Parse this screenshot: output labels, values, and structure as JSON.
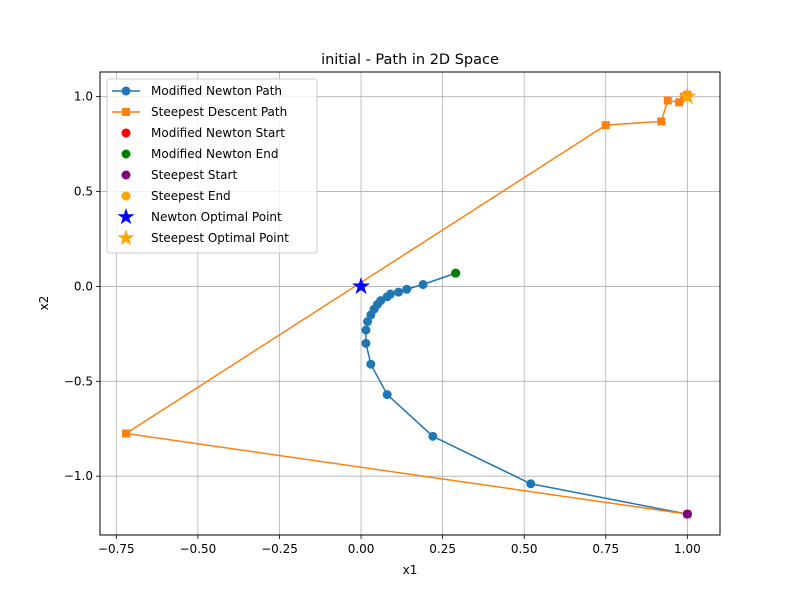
{
  "chart_data": {
    "type": "line",
    "title": "initial - Path in 2D Space",
    "xlabel": "x1",
    "ylabel": "x2",
    "xlim": [
      -0.8,
      1.1
    ],
    "ylim": [
      -1.31,
      1.13
    ],
    "xticks": [
      -0.75,
      -0.5,
      -0.25,
      0.0,
      0.25,
      0.5,
      0.75,
      1.0
    ],
    "xtick_labels": [
      "−0.75",
      "−0.50",
      "−0.25",
      "0.00",
      "0.25",
      "0.50",
      "0.75",
      "1.00"
    ],
    "yticks": [
      -1.0,
      -0.5,
      0.0,
      0.5,
      1.0
    ],
    "ytick_labels": [
      "−1.0",
      "−0.5",
      "0.0",
      "0.5",
      "1.0"
    ],
    "grid": true,
    "legend_position": "top-left",
    "series": [
      {
        "name": "Modified Newton Path",
        "kind": "line-marker",
        "marker": "circle",
        "color": "#1f77b4",
        "x": [
          1.0,
          0.52,
          0.22,
          0.08,
          0.03,
          0.015,
          0.015,
          0.02,
          0.03,
          0.04,
          0.05,
          0.06,
          0.08,
          0.09,
          0.115,
          0.14,
          0.19,
          0.29
        ],
        "y": [
          -1.2,
          -1.04,
          -0.79,
          -0.57,
          -0.41,
          -0.3,
          -0.23,
          -0.185,
          -0.15,
          -0.12,
          -0.095,
          -0.075,
          -0.055,
          -0.04,
          -0.03,
          -0.015,
          0.01,
          0.07
        ]
      },
      {
        "name": "Steepest Descent Path",
        "kind": "line-marker",
        "marker": "square",
        "color": "#ff7f0e",
        "x": [
          1.0,
          -0.72,
          0.75,
          0.92,
          0.94,
          0.975,
          0.99,
          1.0,
          1.0
        ],
        "y": [
          -1.2,
          -0.775,
          0.85,
          0.87,
          0.98,
          0.97,
          1.0,
          1.0,
          1.01
        ]
      },
      {
        "name": "Modified Newton Start",
        "kind": "point",
        "marker": "circle",
        "color": "#ff0000",
        "x": [
          1.0
        ],
        "y": [
          -1.2
        ]
      },
      {
        "name": "Modified Newton End",
        "kind": "point",
        "marker": "circle",
        "color": "#008000",
        "x": [
          0.29
        ],
        "y": [
          0.07
        ]
      },
      {
        "name": "Steepest Start",
        "kind": "point",
        "marker": "circle",
        "color": "#800080",
        "x": [
          1.0
        ],
        "y": [
          -1.2
        ]
      },
      {
        "name": "Steepest End",
        "kind": "point",
        "marker": "circle",
        "color": "#ffa500",
        "x": [
          1.0
        ],
        "y": [
          1.0
        ]
      },
      {
        "name": "Newton Optimal Point",
        "kind": "point",
        "marker": "star",
        "color": "#0000ff",
        "x": [
          0.0
        ],
        "y": [
          0.0
        ]
      },
      {
        "name": "Steepest Optimal Point",
        "kind": "point",
        "marker": "star",
        "color": "#ffa500",
        "x": [
          1.0
        ],
        "y": [
          1.0
        ]
      }
    ]
  }
}
